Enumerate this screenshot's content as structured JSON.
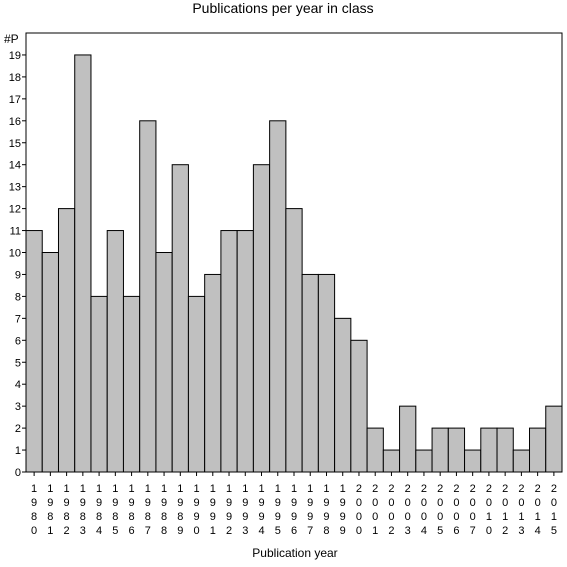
{
  "chart_data": {
    "type": "bar",
    "title": "Publications per year in class",
    "ylabel": "#P",
    "xlabel": "Publication year",
    "ylim": [
      0,
      20
    ],
    "yticks": [
      0,
      1,
      2,
      3,
      4,
      5,
      6,
      7,
      8,
      9,
      10,
      11,
      12,
      13,
      14,
      15,
      16,
      17,
      18,
      19
    ],
    "grid": false,
    "bar_color": "#c0c0c0",
    "edge_color": "#000000",
    "categories": [
      "1980",
      "1981",
      "1982",
      "1983",
      "1984",
      "1985",
      "1986",
      "1987",
      "1988",
      "1989",
      "1990",
      "1991",
      "1992",
      "1993",
      "1994",
      "1995",
      "1996",
      "1997",
      "1998",
      "1999",
      "2000",
      "2001",
      "2002",
      "2003",
      "2004",
      "2005",
      "2006",
      "2007",
      "2010",
      "2012",
      "2013",
      "2014",
      "2015"
    ],
    "values": [
      11,
      10,
      12,
      19,
      8,
      11,
      8,
      16,
      10,
      14,
      8,
      9,
      11,
      11,
      14,
      16,
      12,
      9,
      9,
      7,
      6,
      2,
      1,
      3,
      1,
      2,
      2,
      1,
      2,
      2,
      1,
      2,
      3
    ]
  }
}
